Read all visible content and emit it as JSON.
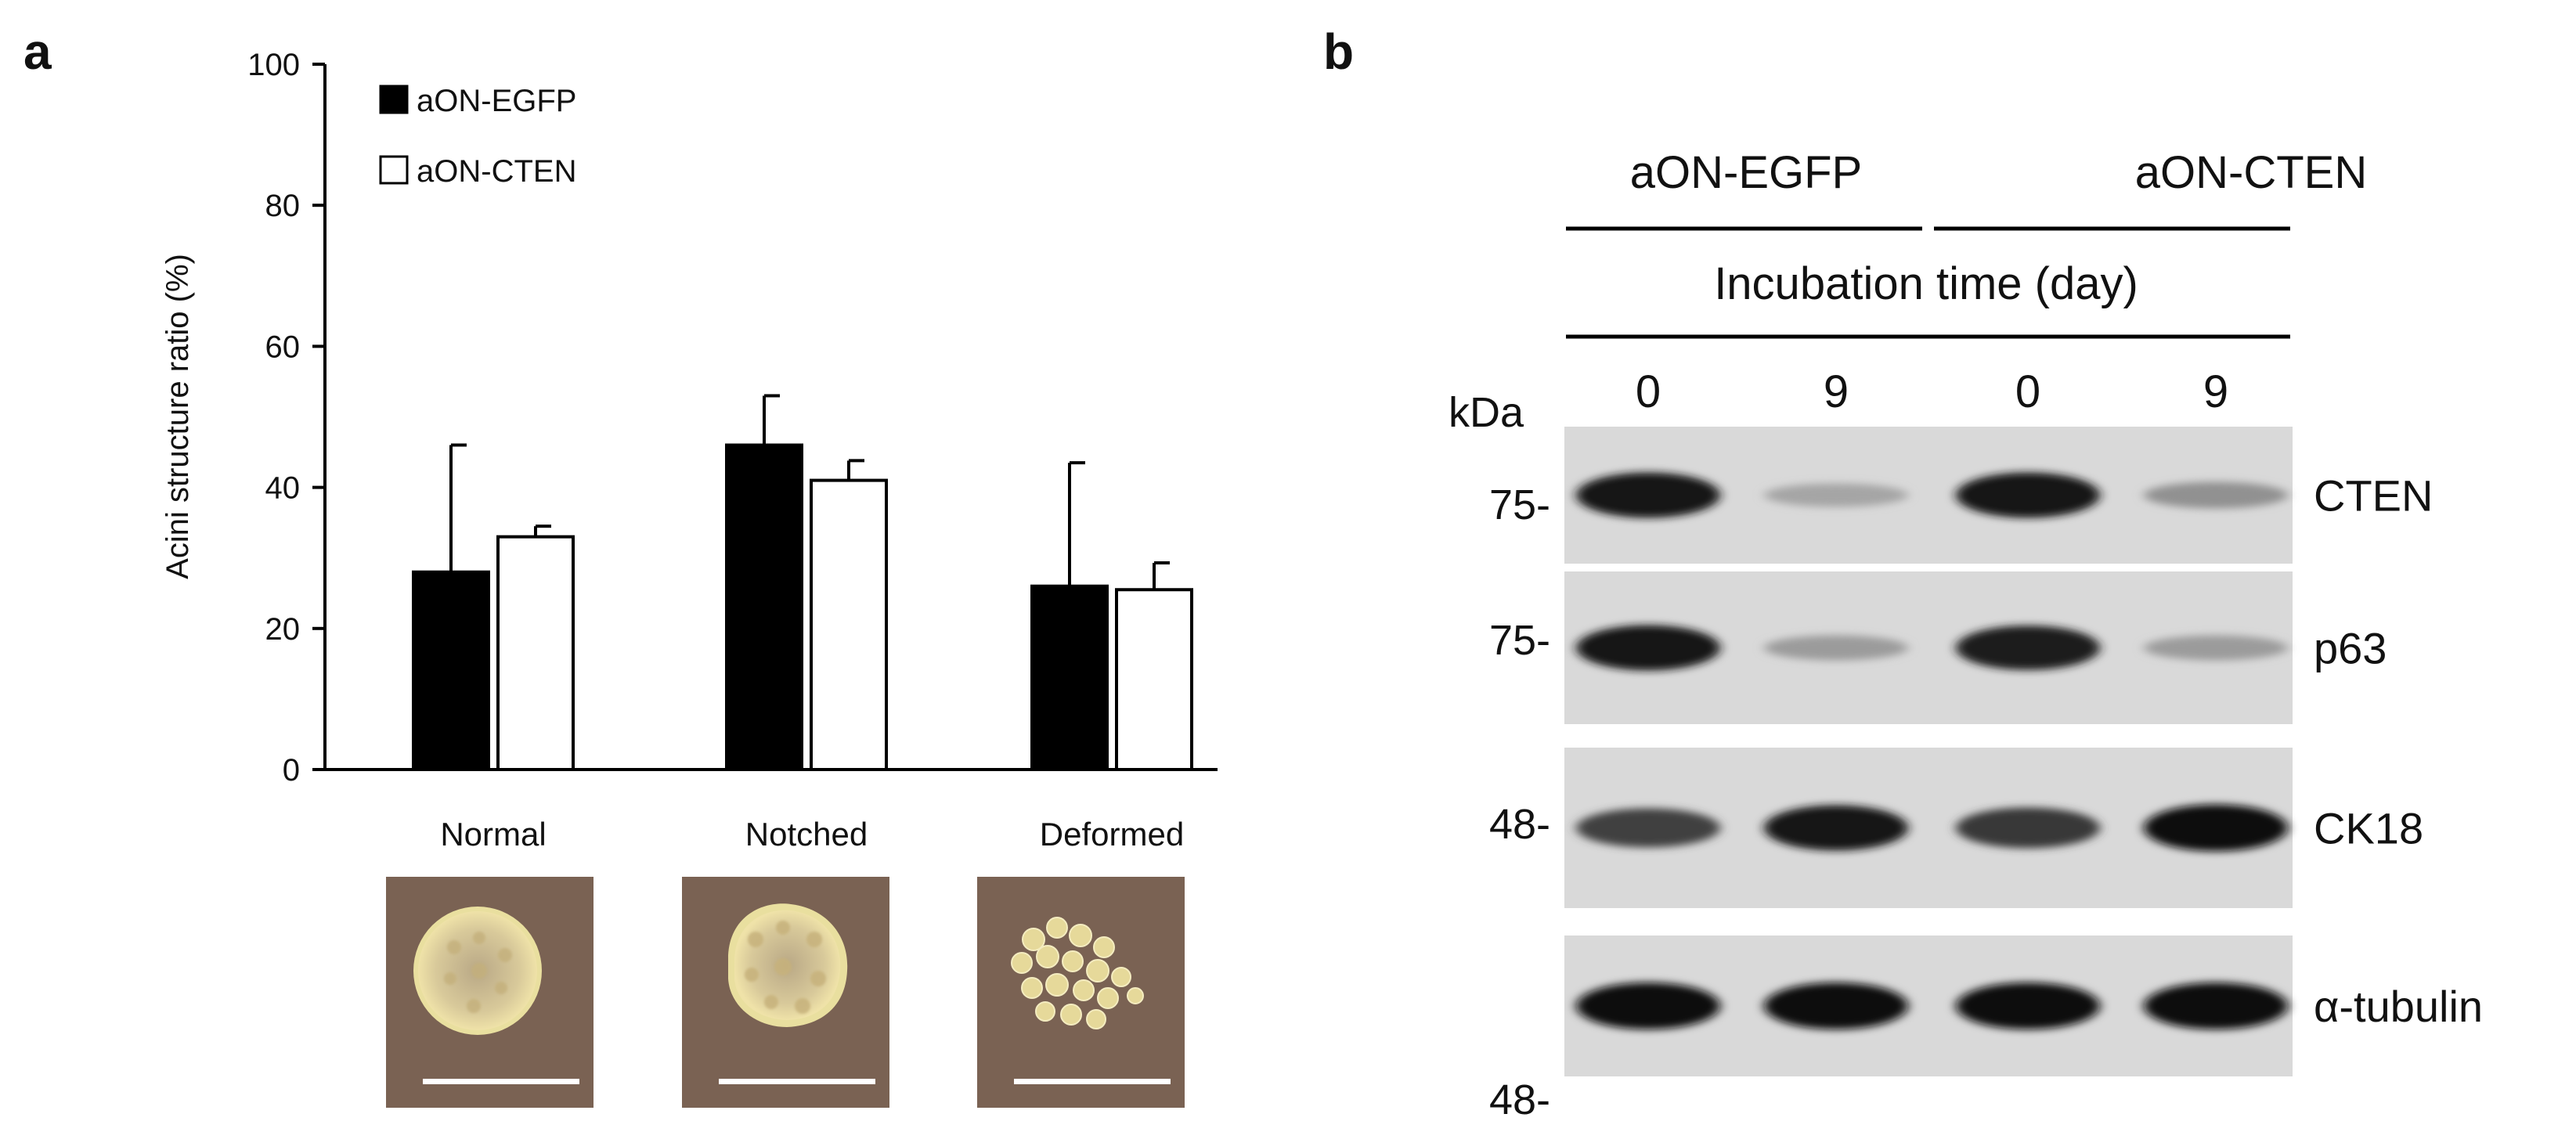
{
  "panel_a": {
    "letter": "a",
    "chart_data": {
      "type": "bar",
      "categories": [
        "Normal",
        "Notched",
        "Deformed"
      ],
      "series": [
        {
          "name": "aON-EGFP",
          "values": [
            28,
            46,
            26
          ],
          "errors": [
            18,
            7,
            17.5
          ],
          "color": "#000000"
        },
        {
          "name": "aON-CTEN",
          "values": [
            33,
            41,
            25.5
          ],
          "errors": [
            1.5,
            2.8,
            3.8
          ],
          "color": "#ffffff"
        }
      ],
      "ylabel": "Acini structure ratio (%)",
      "ylim": [
        0,
        100
      ],
      "yticks": [
        0,
        20,
        40,
        60,
        80,
        100
      ],
      "grid": false,
      "legend": "top-left"
    }
  },
  "panel_b": {
    "letter": "b",
    "group_labels": [
      "aON-EGFP",
      "aON-CTEN"
    ],
    "incubation_label": "Incubation time (day)",
    "kda_label": "kDa",
    "lane_labels": [
      "0",
      "9",
      "0",
      "9"
    ],
    "blots": [
      {
        "protein": "CTEN",
        "marker": "75-",
        "intensities": [
          0.95,
          0.25,
          0.95,
          0.35
        ]
      },
      {
        "protein": "p63",
        "marker": "75-",
        "intensities": [
          0.95,
          0.3,
          0.92,
          0.3
        ]
      },
      {
        "protein": "CK18",
        "marker": "48-",
        "intensities": [
          0.75,
          0.95,
          0.8,
          1.0
        ]
      },
      {
        "protein": "α-tubulin",
        "marker": "48-",
        "intensities": [
          1.0,
          1.0,
          1.0,
          1.0
        ]
      }
    ]
  }
}
